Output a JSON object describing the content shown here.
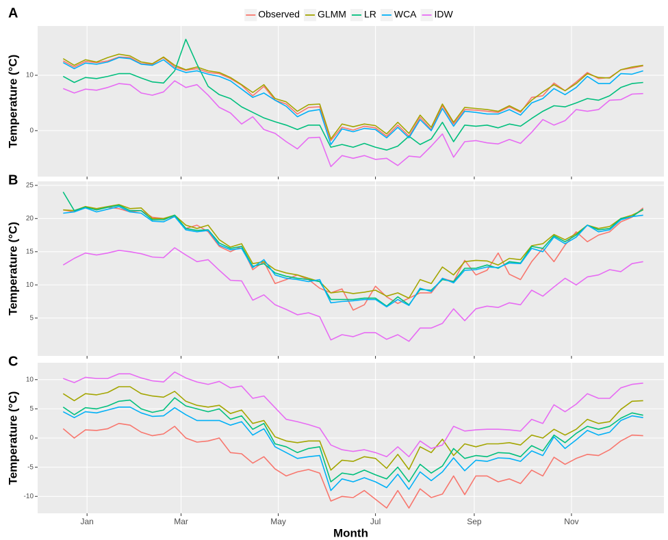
{
  "chart_data": [
    {
      "type": "line",
      "label": "A",
      "ylabel": "Temperature (°C)",
      "x": [
        -14,
        -7,
        0,
        7,
        14,
        21,
        28,
        35,
        42,
        49,
        56,
        63,
        70,
        77,
        84,
        91,
        98,
        105,
        112,
        119,
        126,
        133,
        140,
        147,
        154,
        161,
        168,
        175,
        182,
        189,
        196,
        203,
        210,
        217,
        224,
        231,
        238,
        245,
        252,
        259,
        266,
        273,
        280,
        287,
        294,
        301,
        308,
        315,
        322,
        329,
        336,
        343,
        350
      ],
      "xlim": [
        -30,
        363
      ],
      "xticks": [
        1,
        60,
        121,
        182,
        244,
        305
      ],
      "ylim": [
        -8.3,
        18.9
      ],
      "yticks": [
        0,
        10
      ],
      "grid": true,
      "legend": "top",
      "series": [
        {
          "name": "Observed",
          "color": "#F8766D",
          "values": [
            12.6,
            11.5,
            12.5,
            12.3,
            12.6,
            13.3,
            13.2,
            12.1,
            12,
            13.2,
            11.5,
            10.9,
            11.2,
            10.5,
            10.3,
            9.4,
            8.2,
            6.3,
            8,
            5.5,
            4.8,
            3,
            4.2,
            4.3,
            -1.8,
            0.6,
            0.1,
            0.8,
            0.5,
            -1,
            1,
            -1,
            2.4,
            0.2,
            4.5,
            1.2,
            3.8,
            3.7,
            3.5,
            3.3,
            4.3,
            3.3,
            6,
            6.3,
            8.6,
            7.2,
            8.8,
            10.5,
            9.4,
            9.6,
            11,
            11.3,
            11.7
          ]
        },
        {
          "name": "GLMM",
          "color": "#A3A500",
          "values": [
            13,
            11.8,
            12.8,
            12.4,
            13.2,
            13.8,
            13.5,
            12.4,
            12.1,
            13.3,
            11.8,
            11,
            11.5,
            10.8,
            10.5,
            9.6,
            8.3,
            6.9,
            8.3,
            5.8,
            5.2,
            3.5,
            4.7,
            4.8,
            -1.5,
            1.2,
            0.7,
            1.2,
            0.9,
            -0.6,
            1.5,
            -0.5,
            2.8,
            0.6,
            4.8,
            1.5,
            4.2,
            4,
            3.8,
            3.5,
            4.5,
            3.5,
            5.5,
            7,
            8.3,
            7.2,
            8.5,
            10.3,
            9.6,
            9.5,
            11,
            11.5,
            11.8
          ]
        },
        {
          "name": "LR",
          "color": "#00BF7D",
          "values": [
            9.8,
            8.7,
            9.6,
            9.4,
            9.8,
            10.3,
            10.3,
            9.5,
            8.8,
            8.6,
            10.8,
            16.5,
            12,
            8,
            6.5,
            5.8,
            4.3,
            3.3,
            2.3,
            1.6,
            1,
            0.2,
            1,
            1,
            -3,
            -2.5,
            -3,
            -2.3,
            -3,
            -3.5,
            -2.8,
            -1,
            -2.5,
            -1.5,
            1.5,
            -2,
            1,
            0.8,
            1,
            0.5,
            1.2,
            0.8,
            2.2,
            3.5,
            4.5,
            4.3,
            5,
            5.8,
            5.5,
            6.3,
            7.8,
            8.5,
            8.7
          ]
        },
        {
          "name": "WCA",
          "color": "#00B0F6",
          "values": [
            12.3,
            11.2,
            12.2,
            12,
            12.4,
            13.2,
            13,
            12,
            11.8,
            12.8,
            11.2,
            10.5,
            10.8,
            10.2,
            9.8,
            9,
            7.5,
            6,
            6.8,
            5.5,
            4.4,
            2.5,
            3.5,
            3.8,
            -2.5,
            0.3,
            -0.2,
            0.4,
            0.2,
            -1.3,
            0.6,
            -1.3,
            2,
            0,
            4,
            0.8,
            3.5,
            3.3,
            3,
            3,
            3.8,
            2.8,
            5,
            5.8,
            7.6,
            6.5,
            7.8,
            9.8,
            8.5,
            8.5,
            10.3,
            10.2,
            10.8
          ]
        },
        {
          "name": "IDW",
          "color": "#E76BF3",
          "values": [
            7.6,
            6.8,
            7.5,
            7.3,
            7.8,
            8.5,
            8.3,
            6.8,
            6.4,
            7,
            9,
            7.8,
            8.3,
            6.4,
            4.2,
            3.2,
            1.2,
            2.5,
            0.2,
            -0.5,
            -2,
            -3.3,
            -1.3,
            -1.2,
            -6.5,
            -4.5,
            -5,
            -4.5,
            -5.2,
            -5,
            -6.3,
            -4.6,
            -4.8,
            -2.8,
            -0.6,
            -4.8,
            -2,
            -1.8,
            -2.2,
            -2.4,
            -1.6,
            -2.3,
            -0.3,
            2,
            1,
            1.8,
            3.8,
            3.5,
            3.8,
            5.5,
            5.6,
            6.6,
            6.7
          ]
        }
      ]
    },
    {
      "type": "line",
      "label": "B",
      "ylabel": "Temperature (°C)",
      "x": [
        -14,
        -7,
        0,
        7,
        14,
        21,
        28,
        35,
        42,
        49,
        56,
        63,
        70,
        77,
        84,
        91,
        98,
        105,
        112,
        119,
        126,
        133,
        140,
        147,
        154,
        161,
        168,
        175,
        182,
        189,
        196,
        203,
        210,
        217,
        224,
        231,
        238,
        245,
        252,
        259,
        266,
        273,
        280,
        287,
        294,
        301,
        308,
        315,
        322,
        329,
        336,
        343,
        350
      ],
      "xlim": [
        -30,
        363
      ],
      "xticks": [
        1,
        60,
        121,
        182,
        244,
        305
      ],
      "ylim": [
        -0.7,
        25.6
      ],
      "yticks": [
        5,
        10,
        15,
        20,
        25
      ],
      "grid": true,
      "series": [
        {
          "name": "Observed",
          "color": "#F8766D",
          "values": [
            21.3,
            21,
            21.8,
            21.3,
            21.7,
            21.5,
            21,
            21.2,
            20.2,
            20,
            20.3,
            18.5,
            19,
            18,
            15.8,
            15,
            15.8,
            12.3,
            13.5,
            10.2,
            10.8,
            11.5,
            10.8,
            9.5,
            8.8,
            9.4,
            6.2,
            7,
            9.8,
            8.2,
            7.2,
            8,
            8.8,
            8.8,
            11,
            10.5,
            13.7,
            11.5,
            12.2,
            14.8,
            11.6,
            10.8,
            13.5,
            15.5,
            13.5,
            16,
            18,
            16.5,
            17.5,
            18,
            19.5,
            20.2,
            21.6
          ]
        },
        {
          "name": "GLMM",
          "color": "#A3A500",
          "values": [
            21.3,
            21.2,
            21.8,
            21.5,
            21.8,
            22.1,
            21.5,
            21.6,
            20,
            20,
            20.5,
            19,
            18.5,
            19,
            16.8,
            15.7,
            16.2,
            13.2,
            13.5,
            12.3,
            11.8,
            11.5,
            11,
            10.5,
            8.8,
            9,
            8.7,
            8.9,
            9.2,
            8.3,
            8.8,
            8,
            10.8,
            10.2,
            12.7,
            11.5,
            13.5,
            13.7,
            13.6,
            13,
            14,
            13.8,
            15.9,
            16.2,
            17.6,
            16.8,
            17.7,
            19,
            18.5,
            18.8,
            20,
            20.5,
            21.3
          ]
        },
        {
          "name": "LR",
          "color": "#00BF7D",
          "values": [
            24,
            21.2,
            21.7,
            21.3,
            21.7,
            22,
            21.2,
            21.2,
            19.8,
            19.8,
            20.5,
            18.5,
            18.2,
            18.3,
            16.3,
            15.5,
            15.8,
            12.8,
            13.2,
            11.8,
            11.3,
            11,
            10.8,
            10.5,
            7.8,
            7.8,
            7.8,
            8,
            8,
            6.8,
            8.2,
            7,
            9.3,
            9.2,
            10.8,
            10.5,
            12.5,
            12.5,
            13,
            12.5,
            13.5,
            13.3,
            15.8,
            15.5,
            17.4,
            16.5,
            17.5,
            19,
            18.3,
            18.5,
            20,
            20.3,
            21.4
          ]
        },
        {
          "name": "WCA",
          "color": "#00B0F6",
          "values": [
            20.8,
            21,
            21.6,
            21,
            21.4,
            21.8,
            21,
            20.8,
            19.6,
            19.5,
            20.3,
            18.3,
            18,
            18.2,
            16,
            15.3,
            15.5,
            12.6,
            13.8,
            11.5,
            11,
            10.8,
            10.5,
            10.8,
            7.3,
            7.5,
            7.6,
            7.8,
            7.8,
            6.7,
            7.8,
            6.9,
            9.5,
            9,
            11,
            10.3,
            12.2,
            12.3,
            12.7,
            12.6,
            13.3,
            13.2,
            15.5,
            15,
            17.2,
            16.2,
            17.2,
            19,
            18,
            18.3,
            19.8,
            20.3,
            20.5
          ]
        },
        {
          "name": "IDW",
          "color": "#E76BF3",
          "values": [
            13,
            14,
            14.8,
            14.5,
            14.8,
            15.2,
            15,
            14.7,
            14.2,
            14.1,
            15.6,
            14.5,
            13.5,
            13.8,
            12.2,
            10.7,
            10.6,
            7.7,
            8.5,
            7,
            6.3,
            5.5,
            5.8,
            5.2,
            1.7,
            2.5,
            2.2,
            2.8,
            2.8,
            1.8,
            2.5,
            1.5,
            3.5,
            3.5,
            4.2,
            6.4,
            4.6,
            6.4,
            6.8,
            6.6,
            7.3,
            7,
            9.2,
            8.3,
            9.7,
            11,
            10,
            11.2,
            11.5,
            12.3,
            12,
            13.2,
            13.5
          ]
        }
      ]
    },
    {
      "type": "line",
      "label": "C",
      "ylabel": "Temperature (°C)",
      "xlabel": "Month",
      "x": [
        -14,
        -7,
        0,
        7,
        14,
        21,
        28,
        35,
        42,
        49,
        56,
        63,
        70,
        77,
        84,
        91,
        98,
        105,
        112,
        119,
        126,
        133,
        140,
        147,
        154,
        161,
        168,
        175,
        182,
        189,
        196,
        203,
        210,
        217,
        224,
        231,
        238,
        245,
        252,
        259,
        266,
        273,
        280,
        287,
        294,
        301,
        308,
        315,
        322,
        329,
        336,
        343,
        350
      ],
      "xlim": [
        -30,
        363
      ],
      "xticks": [
        {
          "value": 1,
          "label": "Jan"
        },
        {
          "value": 60,
          "label": "Mar"
        },
        {
          "value": 121,
          "label": "May"
        },
        {
          "value": 182,
          "label": "Jul"
        },
        {
          "value": 244,
          "label": "Sep"
        },
        {
          "value": 305,
          "label": "Nov"
        }
      ],
      "ylim": [
        -12.9,
        12.9
      ],
      "yticks": [
        -10,
        -5,
        0,
        5,
        10
      ],
      "grid": true,
      "series": [
        {
          "name": "Observed",
          "color": "#F8766D",
          "values": [
            1.6,
            0,
            1.4,
            1.3,
            1.6,
            2.5,
            2.2,
            1,
            0.4,
            0.7,
            2,
            0,
            -0.7,
            -0.5,
            0,
            -2.5,
            -2.7,
            -4.3,
            -3.2,
            -5.3,
            -6.5,
            -5.8,
            -5.4,
            -6,
            -10.8,
            -10,
            -10.2,
            -9,
            -10.5,
            -12,
            -9,
            -12,
            -8.7,
            -10.2,
            -9.6,
            -6.5,
            -9.7,
            -6.5,
            -6.5,
            -7.5,
            -7,
            -7.8,
            -5.5,
            -6.5,
            -3.3,
            -4.5,
            -3.5,
            -2.8,
            -3,
            -2,
            -0.5,
            0.5,
            0.4
          ]
        },
        {
          "name": "GLMM",
          "color": "#A3A500",
          "values": [
            7.6,
            6.4,
            7.6,
            7.4,
            7.8,
            8.8,
            8.8,
            7.6,
            7.2,
            7,
            8,
            6.3,
            5.6,
            5.3,
            5.6,
            4.2,
            4.8,
            2.5,
            3,
            0.2,
            -0.5,
            -0.8,
            -0.5,
            -0.5,
            -5.5,
            -3.8,
            -4,
            -3.2,
            -3.5,
            -5.2,
            -2.8,
            -5.4,
            -1.5,
            -2.5,
            -0.2,
            -3,
            -1,
            -1.5,
            -1,
            -1,
            -0.8,
            -1.2,
            0.5,
            0,
            1.5,
            0.5,
            1.5,
            3.2,
            2.5,
            2.8,
            4.9,
            6.3,
            6.4
          ]
        },
        {
          "name": "LR",
          "color": "#00BF7D",
          "values": [
            5.3,
            4,
            5.2,
            5,
            5.5,
            6.3,
            6.5,
            5,
            4.4,
            4.8,
            6.9,
            5.5,
            5,
            4.5,
            5,
            3.2,
            3.8,
            1.5,
            2.5,
            -1,
            -1.5,
            -2.5,
            -1.8,
            -1.5,
            -7.5,
            -6,
            -6.3,
            -5.5,
            -6.3,
            -7,
            -5,
            -7.5,
            -4.5,
            -6,
            -4.8,
            -1.8,
            -3.5,
            -3,
            -3.2,
            -2.5,
            -2.6,
            -3.2,
            -1.3,
            -2.2,
            0.5,
            -0.8,
            0.8,
            2,
            1.5,
            2,
            3.4,
            4.3,
            3.9
          ]
        },
        {
          "name": "WCA",
          "color": "#00B0F6",
          "values": [
            4.5,
            3.5,
            4.5,
            4.3,
            4.8,
            5.3,
            5.3,
            4.3,
            3.7,
            3.8,
            5.2,
            4,
            3,
            3,
            3,
            2.2,
            2.8,
            0.5,
            1.6,
            -1.5,
            -2.5,
            -3.5,
            -3.2,
            -3,
            -9,
            -7,
            -7.5,
            -6.8,
            -7.5,
            -8.5,
            -6.2,
            -8.8,
            -5.8,
            -7.3,
            -5.8,
            -3.4,
            -5.6,
            -3.8,
            -4,
            -3.4,
            -3.5,
            -4,
            -2.2,
            -3,
            0.2,
            -1.8,
            -0.3,
            1.3,
            0.5,
            1,
            3,
            3.8,
            3.5
          ]
        },
        {
          "name": "IDW",
          "color": "#E76BF3",
          "values": [
            10.2,
            9.5,
            10.4,
            10.2,
            10.2,
            11,
            11,
            10.3,
            9.8,
            9.6,
            11.3,
            10.3,
            9.6,
            9.2,
            9.7,
            8.6,
            8.9,
            6.8,
            7.2,
            5.2,
            3.2,
            2.8,
            2.3,
            1.7,
            -1.2,
            -2,
            -2.3,
            -2,
            -2.5,
            -3.2,
            -1.5,
            -3.2,
            -0.5,
            -1.8,
            -1.2,
            2,
            1.2,
            1.4,
            1.5,
            1.5,
            1.4,
            1.2,
            3.2,
            2.5,
            5.7,
            4.5,
            5.8,
            7.6,
            6.8,
            6.8,
            8.6,
            9.2,
            9.4
          ]
        }
      ]
    }
  ]
}
